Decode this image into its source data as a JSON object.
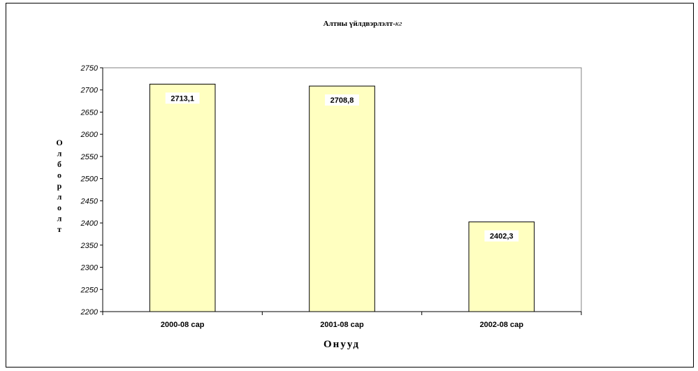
{
  "chart_data": {
    "type": "bar",
    "title": "Алтны үйлдвэрлэлт-",
    "title_unit": "кг",
    "xlabel": "Онууд",
    "ylabel": "Олборлолт",
    "categories": [
      "2000-08 сар",
      "2001-08 сар",
      "2002-08 сар"
    ],
    "values": [
      2713.1,
      2708.8,
      2402.3
    ],
    "data_labels": [
      "2713,1",
      "2708,8",
      "2402,3"
    ],
    "ylim": [
      2200,
      2750
    ],
    "yticks": [
      2200,
      2250,
      2300,
      2350,
      2400,
      2450,
      2500,
      2550,
      2600,
      2650,
      2700,
      2750
    ],
    "grid": false,
    "legend": "none",
    "bar_color": "#ffffc0",
    "bar_stroke": "#000000"
  }
}
